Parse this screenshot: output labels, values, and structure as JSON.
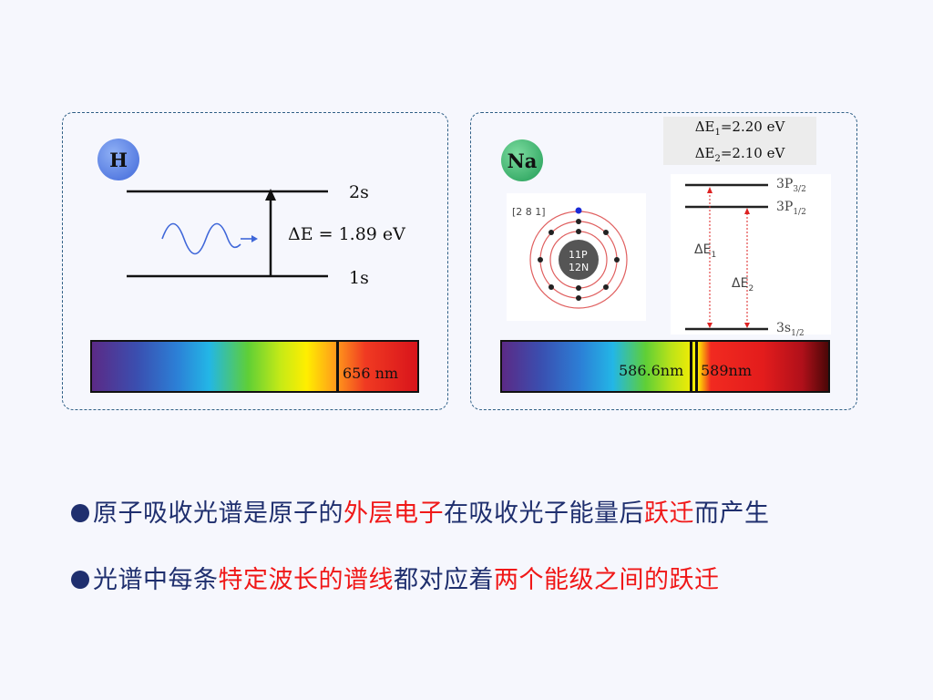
{
  "hydrogen": {
    "symbol": "H",
    "upper_level": "2s",
    "lower_level": "1s",
    "delta_e": "ΔE = 1.89 eV",
    "spectrum_line_label": "656 nm"
  },
  "sodium": {
    "symbol": "Na",
    "delta_e1": "ΔE1=2.20 eV",
    "delta_e2": "ΔE2=2.10 eV",
    "electron_config": "[2 8 1]",
    "nucleus_protons": "11P",
    "nucleus_neutrons": "12N",
    "level_3p32": "3P3/2",
    "level_3p12": "3P1/2",
    "level_3s12": "3s1/2",
    "transition_1": "ΔE1",
    "transition_2": "ΔE2",
    "spectrum_line_1": "586.6nm",
    "spectrum_line_2": "589nm"
  },
  "bullets": [
    {
      "parts": [
        {
          "text": "原子吸收光谱是原子的",
          "emphasis": false
        },
        {
          "text": "外层电子",
          "emphasis": true
        },
        {
          "text": "在吸收光子能量后",
          "emphasis": false
        },
        {
          "text": "跃迁",
          "emphasis": true
        },
        {
          "text": "而产生",
          "emphasis": false
        }
      ]
    },
    {
      "parts": [
        {
          "text": "光谱中每条",
          "emphasis": false
        },
        {
          "text": "特定波长的谱线",
          "emphasis": true
        },
        {
          "text": "都对应着",
          "emphasis": false
        },
        {
          "text": "两个能级之间的跃迁",
          "emphasis": true
        }
      ]
    }
  ],
  "colors": {
    "text_blue": "#1f2f6e",
    "emphasis_red": "#f01818",
    "panel_border": "#2f5f86"
  }
}
